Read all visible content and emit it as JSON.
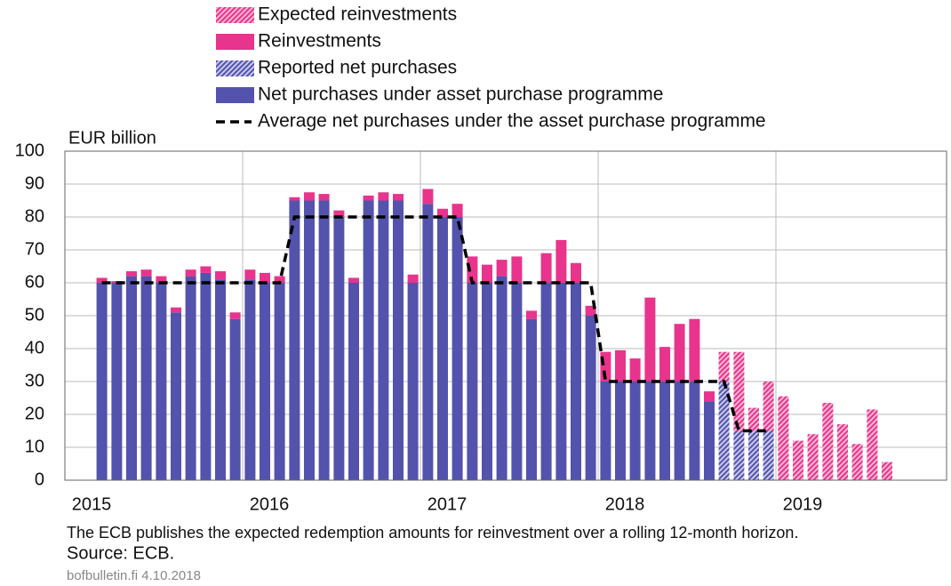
{
  "chart_data": {
    "type": "bar",
    "stacked": true,
    "y_axis_label": "EUR billion",
    "note": "The ECB publishes the expected redemption amounts for reinvestment over a rolling 12-month horizon.",
    "source": "Source: ECB.",
    "credit": "bofbulletin.fi 4.10.2018",
    "xlim": [
      2015,
      2019.96
    ],
    "xticks": [
      2015,
      2016,
      2017,
      2018,
      2019
    ],
    "ylim": [
      0,
      100
    ],
    "yticks": [
      0,
      10,
      20,
      30,
      40,
      50,
      60,
      70,
      80,
      90,
      100
    ],
    "grid": true,
    "legend": "top",
    "x": [
      2015.208,
      2015.292,
      2015.375,
      2015.458,
      2015.542,
      2015.625,
      2015.708,
      2015.792,
      2015.875,
      2015.958,
      2016.042,
      2016.125,
      2016.208,
      2016.292,
      2016.375,
      2016.458,
      2016.542,
      2016.625,
      2016.708,
      2016.792,
      2016.875,
      2016.958,
      2017.042,
      2017.125,
      2017.208,
      2017.292,
      2017.375,
      2017.458,
      2017.542,
      2017.625,
      2017.708,
      2017.792,
      2017.875,
      2017.958,
      2018.042,
      2018.125,
      2018.208,
      2018.292,
      2018.375,
      2018.458,
      2018.542,
      2018.625,
      2018.708,
      2018.792,
      2018.875,
      2018.958,
      2019.042,
      2019.125,
      2019.208,
      2019.292,
      2019.375,
      2019.458,
      2019.542,
      2019.625
    ],
    "series": [
      {
        "name": "Expected reinvestments",
        "color": "#e8348c",
        "hatch": true,
        "values": [
          null,
          null,
          null,
          null,
          null,
          null,
          null,
          null,
          null,
          null,
          null,
          null,
          null,
          null,
          null,
          null,
          null,
          null,
          null,
          null,
          null,
          null,
          null,
          null,
          null,
          null,
          null,
          null,
          null,
          null,
          null,
          null,
          null,
          null,
          null,
          null,
          null,
          null,
          null,
          null,
          null,
          null,
          9,
          24,
          7,
          15,
          25.5,
          12,
          14,
          23.5,
          17,
          11,
          21.5,
          5.5
        ]
      },
      {
        "name": "Reinvestments",
        "color": "#e8348c",
        "hatch": false,
        "values": [
          1.5,
          0.5,
          1.5,
          2,
          2,
          1.5,
          2,
          2,
          2.5,
          2,
          3,
          3,
          2,
          1,
          2.5,
          2,
          2,
          1.5,
          1.5,
          2.5,
          2,
          2.5,
          4.5,
          2.5,
          4,
          8,
          5.5,
          5,
          8,
          2.5,
          9,
          13,
          6,
          3,
          9,
          9.5,
          7,
          25.5,
          10.5,
          17.5,
          19,
          3,
          null,
          null,
          null,
          null,
          null,
          null,
          null,
          null,
          null,
          null,
          null,
          null
        ]
      },
      {
        "name": "Reported net purchases",
        "color": "#5353ad",
        "hatch": true,
        "values": [
          null,
          null,
          null,
          null,
          null,
          null,
          null,
          null,
          null,
          null,
          null,
          null,
          null,
          null,
          null,
          null,
          null,
          null,
          null,
          null,
          null,
          null,
          null,
          null,
          null,
          null,
          null,
          null,
          null,
          null,
          null,
          null,
          null,
          null,
          null,
          null,
          null,
          null,
          null,
          null,
          null,
          null,
          30,
          15,
          15,
          15,
          null,
          null,
          null,
          null,
          null,
          null,
          null,
          null
        ]
      },
      {
        "name": "Net purchases under asset purchase programme",
        "color": "#5353ad",
        "hatch": false,
        "values": [
          60,
          60,
          62,
          62,
          60,
          51,
          62,
          63,
          61,
          49,
          61,
          60,
          60,
          85,
          85,
          85,
          80,
          60,
          85,
          85,
          85,
          60,
          84,
          80,
          80,
          60,
          60,
          62,
          60,
          49,
          60,
          60,
          60,
          50,
          30,
          30,
          30,
          30,
          30,
          30,
          30,
          24,
          null,
          null,
          null,
          null,
          null,
          null,
          null,
          null,
          null,
          null,
          null,
          null
        ]
      },
      {
        "name": "Average net purchases under the asset purchase programme",
        "color": "#000000",
        "type": "line",
        "dashed": true,
        "values": [
          60,
          60,
          60,
          60,
          60,
          60,
          60,
          60,
          60,
          60,
          60,
          60,
          60,
          80,
          80,
          80,
          80,
          80,
          80,
          80,
          80,
          80,
          80,
          80,
          80,
          60,
          60,
          60,
          60,
          60,
          60,
          60,
          60,
          60,
          30,
          30,
          30,
          30,
          30,
          30,
          30,
          30,
          30,
          15,
          15,
          15,
          null,
          null,
          null,
          null,
          null,
          null,
          null,
          null
        ]
      }
    ]
  }
}
